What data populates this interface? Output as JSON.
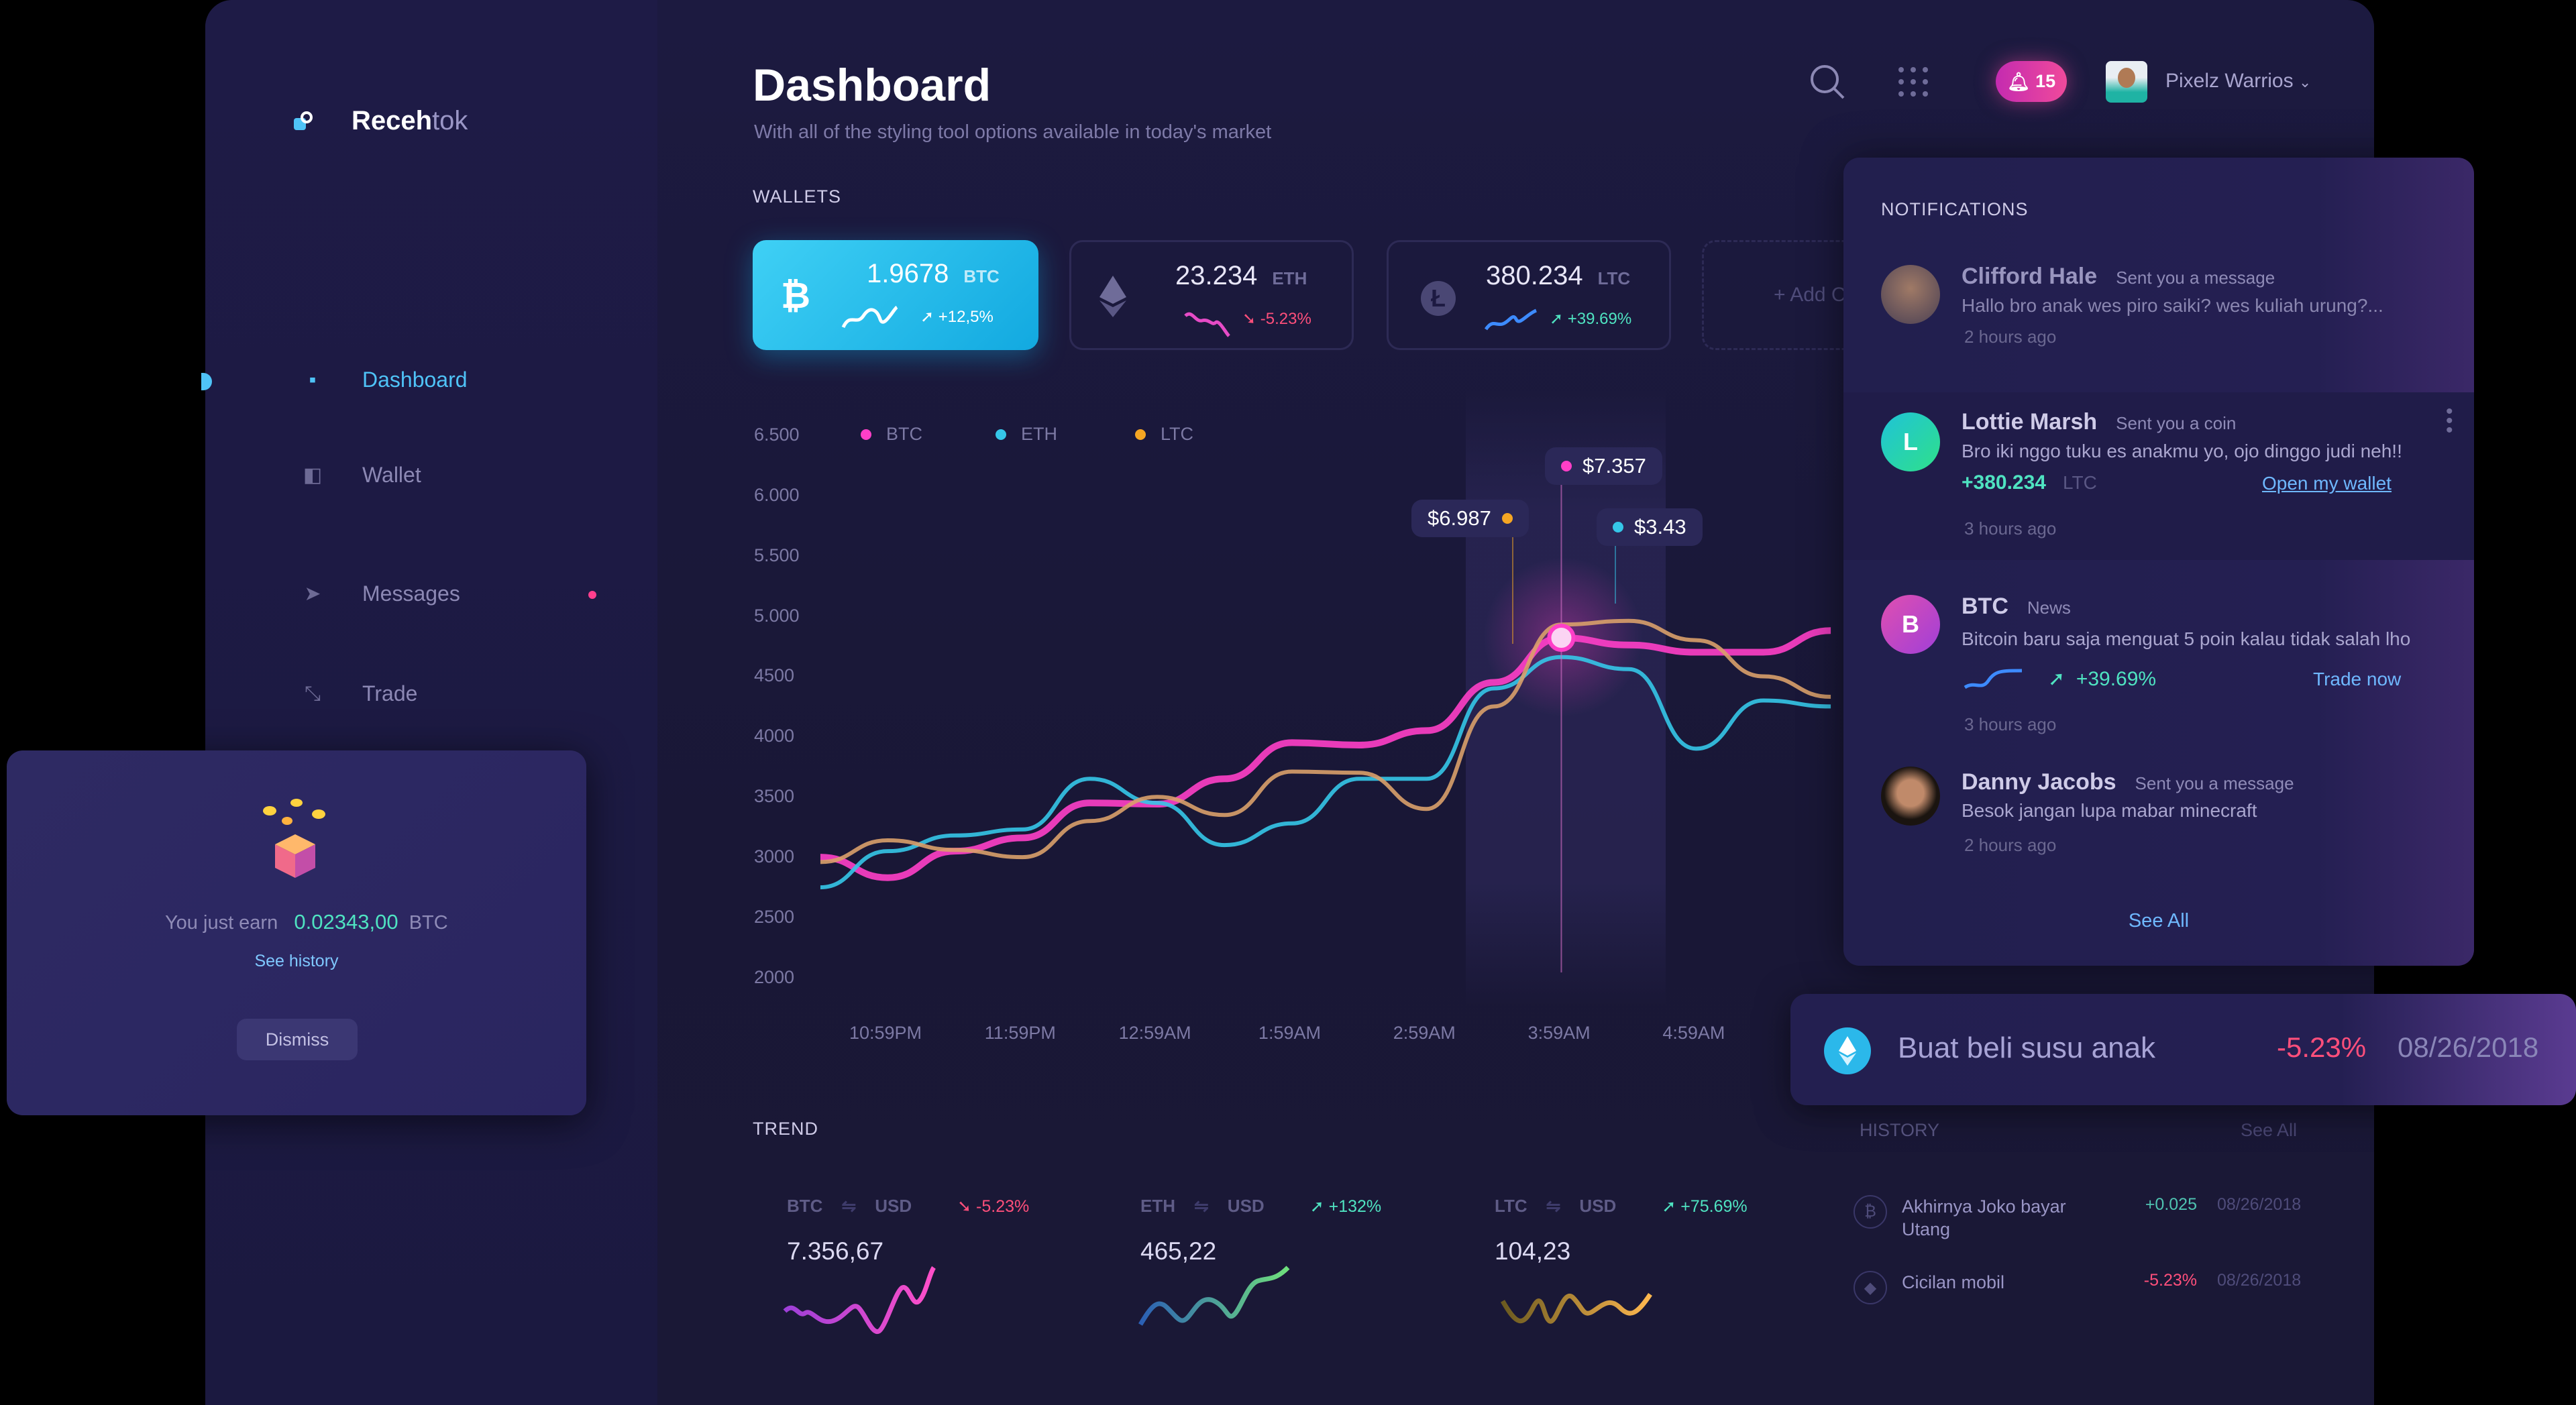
{
  "brand": {
    "name_bold": "Receh",
    "name_light": "tok"
  },
  "sidebar": {
    "items": [
      {
        "label": "Dashboard",
        "icon": "dashboard-icon",
        "active": true
      },
      {
        "label": "Wallet",
        "icon": "wallet-icon"
      },
      {
        "label": "Messages",
        "icon": "send-icon",
        "badge_dot": true
      },
      {
        "label": "Trade",
        "icon": "trade-arrows-icon"
      }
    ]
  },
  "earn_popup": {
    "prefix": "You just earn",
    "amount": "0.02343,00",
    "currency": "BTC",
    "link": "See history",
    "dismiss": "Dismiss"
  },
  "header": {
    "title": "Dashboard",
    "subtitle": "With all of the styling tool options available in today's market",
    "notif_count": "15",
    "user_name": "Pixelz Warrios"
  },
  "wallets": {
    "label": "WALLETS",
    "add_label": "+ Add C",
    "items": [
      {
        "amount": "1.9678",
        "currency": "BTC",
        "change": "+12,5%",
        "direction": "up"
      },
      {
        "amount": "23.234",
        "currency": "ETH",
        "change": "-5.23%",
        "direction": "down"
      },
      {
        "amount": "380.234",
        "currency": "LTC",
        "change": "+39.69%",
        "direction": "up"
      }
    ]
  },
  "chart_data": {
    "type": "line",
    "legend": [
      "BTC",
      "ETH",
      "LTC"
    ],
    "y_ticks": [
      "6.500",
      "6.000",
      "5.500",
      "5.000",
      "4500",
      "4000",
      "3500",
      "3000",
      "2500",
      "2000"
    ],
    "ylim": [
      2000,
      6500
    ],
    "x_ticks": [
      "10:59PM",
      "11:59PM",
      "12:59AM",
      "1:59AM",
      "2:59AM",
      "3:59AM",
      "4:59AM"
    ],
    "x": [
      "22:30",
      "23:00",
      "23:30",
      "00:00",
      "00:30",
      "01:00",
      "01:30",
      "02:00",
      "02:30",
      "03:00",
      "03:30",
      "04:00",
      "04:30",
      "05:00",
      "05:30",
      "06:00"
    ],
    "series": [
      {
        "name": "BTC",
        "color": "#ff3fc8",
        "values": [
          3000,
          2830,
          3050,
          3160,
          3450,
          3440,
          3650,
          3950,
          3930,
          4050,
          4450,
          4820,
          4760,
          4700,
          4700,
          4880
        ]
      },
      {
        "name": "ETH",
        "color": "#35c6e8",
        "values": [
          2750,
          3050,
          3180,
          3230,
          3650,
          3450,
          3100,
          3280,
          3650,
          3650,
          4400,
          4660,
          4560,
          3900,
          4300,
          4250
        ]
      },
      {
        "name": "LTC",
        "color": "#d9a06a",
        "values": [
          2960,
          3140,
          3060,
          3000,
          3300,
          3500,
          3350,
          3710,
          3700,
          3400,
          4250,
          4930,
          4960,
          4800,
          4500,
          4330
        ]
      }
    ],
    "tooltips": [
      {
        "label": "$6.987",
        "color": "#f5a623"
      },
      {
        "label": "$7.357",
        "color": "#ff3fc8"
      },
      {
        "label": "$3.43",
        "color": "#35c6e8"
      }
    ],
    "grid": false
  },
  "trend": {
    "label": "TREND",
    "items": [
      {
        "from": "BTC",
        "to": "USD",
        "change": "-5.23%",
        "direction": "down",
        "value": "7.356,67"
      },
      {
        "from": "ETH",
        "to": "USD",
        "change": "+132%",
        "direction": "up",
        "value": "465,22"
      },
      {
        "from": "LTC",
        "to": "USD",
        "change": "+75.69%",
        "direction": "up",
        "value": "104,23"
      }
    ]
  },
  "notifications": {
    "title": "NOTIFICATIONS",
    "see_all": "See All",
    "items": [
      {
        "name": "Clifford Hale",
        "action": "Sent you a message",
        "message": "Hallo bro anak wes piro saiki? wes kuliah urung?...",
        "time": "2 hours ago"
      },
      {
        "name": "Lottie Marsh",
        "initial": "L",
        "action": "Sent you a coin",
        "message": "Bro iki nggo tuku es anakmu yo, ojo dinggo judi neh!!",
        "amount": "+380.234",
        "currency": "LTC",
        "link": "Open my wallet",
        "time": "3 hours ago"
      },
      {
        "name": "BTC",
        "initial": "B",
        "action": "News",
        "message": "Bitcoin baru saja menguat 5 poin kalau tidak salah lho",
        "change": "+39.69%",
        "link": "Trade now",
        "time": "3 hours ago"
      },
      {
        "name": "Danny Jacobs",
        "action": "Sent you a message",
        "message": "Besok jangan lupa mabar minecraft",
        "time": "2 hours ago"
      }
    ]
  },
  "toast": {
    "text": "Buat beli susu anak",
    "change": "-5.23%",
    "date": "08/26/2018"
  },
  "history": {
    "label": "HISTORY",
    "see_all": "See All",
    "items": [
      {
        "title": "Akhirnya Joko bayar Utang",
        "amount": "+0.025",
        "date": "08/26/2018",
        "icon": "bitcoin-icon"
      },
      {
        "title": "Cicilan mobil",
        "amount": "-5.23%",
        "date": "08/26/2018",
        "icon": "ethereum-icon"
      }
    ]
  }
}
